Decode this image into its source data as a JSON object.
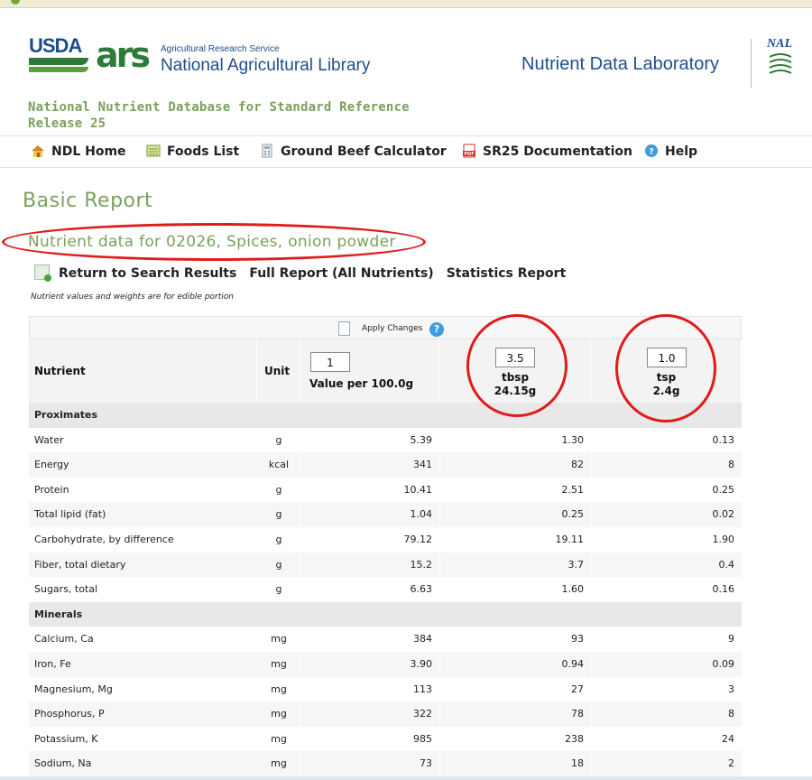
{
  "header": {
    "usda": "USDA",
    "ars": "ars",
    "ars_small": "Agricultural Research Service",
    "ars_big": "National Agricultural Library",
    "ndl_title": "Nutrient Data Laboratory",
    "nal": "NAL",
    "db_title_line1": "National Nutrient Database for Standard Reference",
    "db_title_line2": "Release 25"
  },
  "nav": {
    "items": [
      {
        "label": "NDL Home",
        "icon": "home-icon"
      },
      {
        "label": "Foods List",
        "icon": "list-icon"
      },
      {
        "label": "Ground Beef Calculator",
        "icon": "calculator-icon"
      },
      {
        "label": "SR25 Documentation",
        "icon": "pdf-icon"
      },
      {
        "label": "Help",
        "icon": "help-icon"
      }
    ]
  },
  "page": {
    "title": "Basic Report",
    "nutrient_heading": "Nutrient data for 02026, Spices, onion powder",
    "links": [
      "Return to Search Results",
      "Full Report (All Nutrients)",
      "Statistics Report"
    ],
    "note": "Nutrient values and weights are for edible portion",
    "apply": "Apply Changes"
  },
  "table": {
    "headers": {
      "nutrient": "Nutrient",
      "unit": "Unit",
      "col1_qty": "1",
      "col1_label": "Value per 100.0g",
      "col2_qty": "3.5",
      "col2_measure": "tbsp",
      "col2_weight": "24.15g",
      "col3_qty": "1.0",
      "col3_measure": "tsp",
      "col3_weight": "2.4g"
    },
    "sections": [
      {
        "name": "Proximates",
        "rows": [
          {
            "nutrient": "Water",
            "unit": "g",
            "v100": "5.39",
            "vtbsp": "1.30",
            "vtsp": "0.13"
          },
          {
            "nutrient": "Energy",
            "unit": "kcal",
            "v100": "341",
            "vtbsp": "82",
            "vtsp": "8"
          },
          {
            "nutrient": "Protein",
            "unit": "g",
            "v100": "10.41",
            "vtbsp": "2.51",
            "vtsp": "0.25"
          },
          {
            "nutrient": "Total lipid (fat)",
            "unit": "g",
            "v100": "1.04",
            "vtbsp": "0.25",
            "vtsp": "0.02"
          },
          {
            "nutrient": "Carbohydrate, by difference",
            "unit": "g",
            "v100": "79.12",
            "vtbsp": "19.11",
            "vtsp": "1.90"
          },
          {
            "nutrient": "Fiber, total dietary",
            "unit": "g",
            "v100": "15.2",
            "vtbsp": "3.7",
            "vtsp": "0.4"
          },
          {
            "nutrient": "Sugars, total",
            "unit": "g",
            "v100": "6.63",
            "vtbsp": "1.60",
            "vtsp": "0.16"
          }
        ]
      },
      {
        "name": "Minerals",
        "rows": [
          {
            "nutrient": "Calcium, Ca",
            "unit": "mg",
            "v100": "384",
            "vtbsp": "93",
            "vtsp": "9"
          },
          {
            "nutrient": "Iron, Fe",
            "unit": "mg",
            "v100": "3.90",
            "vtbsp": "0.94",
            "vtsp": "0.09"
          },
          {
            "nutrient": "Magnesium, Mg",
            "unit": "mg",
            "v100": "113",
            "vtbsp": "27",
            "vtsp": "3"
          },
          {
            "nutrient": "Phosphorus, P",
            "unit": "mg",
            "v100": "322",
            "vtbsp": "78",
            "vtsp": "8"
          },
          {
            "nutrient": "Potassium, K",
            "unit": "mg",
            "v100": "985",
            "vtbsp": "238",
            "vtsp": "24"
          },
          {
            "nutrient": "Sodium, Na",
            "unit": "mg",
            "v100": "73",
            "vtbsp": "18",
            "vtsp": "2"
          }
        ]
      }
    ]
  },
  "colors": {
    "accent_green": "#7ba05b",
    "brand_blue": "#1e4d8c",
    "highlight_red": "#e01b1b"
  }
}
